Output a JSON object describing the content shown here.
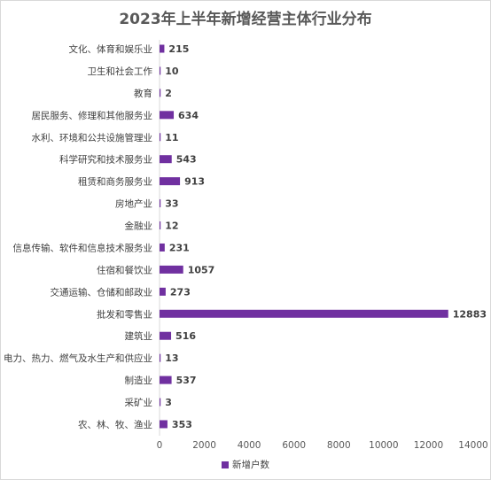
{
  "chart_data": {
    "type": "bar",
    "orientation": "horizontal",
    "title": "2023年上半年新增经营主体行业分布",
    "categories": [
      "文化、体育和娱乐业",
      "卫生和社会工作",
      "教育",
      "居民服务、修理和其他服务业",
      "水利、环境和公共设施管理业",
      "科学研究和技术服务业",
      "租赁和商务服务业",
      "房地产业",
      "金融业",
      "信息传输、软件和信息技术服务业",
      "住宿和餐饮业",
      "交通运输、仓储和邮政业",
      "批发和零售业",
      "建筑业",
      "电力、热力、燃气及水生产和供应业",
      "制造业",
      "采矿业",
      "农、林、牧、渔业"
    ],
    "series": [
      {
        "name": "新增户数",
        "color": "#7030a0",
        "values": [
          215,
          10,
          2,
          634,
          11,
          543,
          913,
          33,
          12,
          231,
          1057,
          273,
          12883,
          516,
          13,
          537,
          3,
          353
        ]
      }
    ],
    "xlim": [
      0,
      14000
    ],
    "xticks": [
      0,
      2000,
      4000,
      6000,
      8000,
      10000,
      12000,
      14000
    ],
    "grid": false,
    "legend": "bottom",
    "axis_color": "#d9d9d9"
  }
}
